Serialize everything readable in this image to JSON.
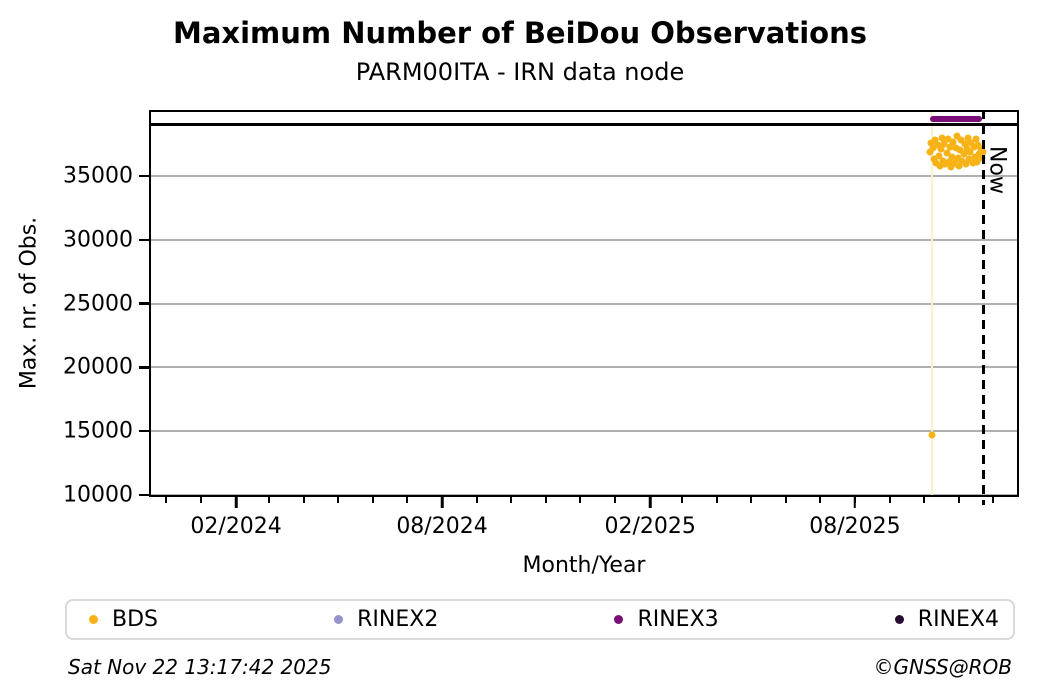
{
  "chart_data": {
    "type": "scatter",
    "title": "Maximum Number of BeiDou Observations",
    "subtitle": "PARM00ITA - IRN data node",
    "xlabel": "Month/Year",
    "ylabel": "Max. nr. of Obs.",
    "x_range": [
      "2023-11-16",
      "2025-12-24"
    ],
    "y_range": [
      9840,
      40170
    ],
    "yticks": [
      10000,
      15000,
      20000,
      25000,
      30000,
      35000
    ],
    "xticks": [
      {
        "date": "2024-02-01",
        "label": "02/2024"
      },
      {
        "date": "2024-08-01",
        "label": "08/2024"
      },
      {
        "date": "2025-02-01",
        "label": "02/2025"
      },
      {
        "date": "2025-08-01",
        "label": "08/2025"
      }
    ],
    "grid_color": "#b0b0b0",
    "now": {
      "date": "2025-11-22T13:17:42",
      "label": "Now"
    },
    "black_line": {
      "value": 39000,
      "color": "#000000"
    },
    "event_line": {
      "date": "2025-10-08",
      "color": "#faf2ce"
    },
    "series": [
      {
        "name": "BDS",
        "color": "#f7b216",
        "type": "scatter",
        "points": [
          [
            "2025-10-06",
            36900
          ],
          [
            "2025-10-07",
            37600
          ],
          [
            "2025-10-08",
            14700
          ],
          [
            "2025-10-09",
            37200
          ],
          [
            "2025-10-10",
            36300
          ],
          [
            "2025-10-11",
            37800
          ],
          [
            "2025-10-12",
            36000
          ],
          [
            "2025-10-13",
            37400
          ],
          [
            "2025-10-14",
            36600
          ],
          [
            "2025-10-15",
            35800
          ],
          [
            "2025-10-16",
            37100
          ],
          [
            "2025-10-17",
            38000
          ],
          [
            "2025-10-18",
            36200
          ],
          [
            "2025-10-19",
            37500
          ],
          [
            "2025-10-20",
            35900
          ],
          [
            "2025-10-21",
            36800
          ],
          [
            "2025-10-22",
            37900
          ],
          [
            "2025-10-23",
            36100
          ],
          [
            "2025-10-24",
            37300
          ],
          [
            "2025-10-25",
            35700
          ],
          [
            "2025-10-26",
            36500
          ],
          [
            "2025-10-27",
            37700
          ],
          [
            "2025-10-28",
            36000
          ],
          [
            "2025-10-29",
            37200
          ],
          [
            "2025-10-30",
            38100
          ],
          [
            "2025-10-31",
            36400
          ],
          [
            "2025-11-01",
            35800
          ],
          [
            "2025-11-02",
            37000
          ],
          [
            "2025-11-03",
            37800
          ],
          [
            "2025-11-04",
            36200
          ],
          [
            "2025-11-05",
            36700
          ],
          [
            "2025-11-06",
            37500
          ],
          [
            "2025-11-07",
            35900
          ],
          [
            "2025-11-08",
            37100
          ],
          [
            "2025-11-09",
            38000
          ],
          [
            "2025-11-10",
            36300
          ],
          [
            "2025-11-11",
            36900
          ],
          [
            "2025-11-12",
            37600
          ],
          [
            "2025-11-13",
            36000
          ],
          [
            "2025-11-14",
            37300
          ],
          [
            "2025-11-15",
            36500
          ],
          [
            "2025-11-16",
            37900
          ],
          [
            "2025-11-17",
            36100
          ],
          [
            "2025-11-18",
            37400
          ],
          [
            "2025-11-19",
            36700
          ],
          [
            "2025-11-20",
            37100
          ],
          [
            "2025-11-21",
            36400
          ],
          [
            "2025-11-22",
            36900
          ]
        ]
      },
      {
        "name": "RINEX2",
        "color": "#9793ce",
        "type": "scatter",
        "points": []
      },
      {
        "name": "RINEX3",
        "color": "#7a0d77",
        "type": "line",
        "points": [
          [
            "2025-10-06",
            39500
          ],
          [
            "2025-11-21",
            39500
          ]
        ]
      },
      {
        "name": "RINEX4",
        "color": "#270b33",
        "type": "line",
        "points": []
      }
    ]
  },
  "legend": {
    "items": [
      {
        "label": "BDS",
        "color": "#f7b216"
      },
      {
        "label": "RINEX2",
        "color": "#9793ce"
      },
      {
        "label": "RINEX3",
        "color": "#7a0d77"
      },
      {
        "label": "RINEX4",
        "color": "#270b33"
      }
    ]
  },
  "footer": {
    "timestamp": "Sat Nov 22 13:17:42 2025",
    "credit": "©GNSS@ROB"
  }
}
